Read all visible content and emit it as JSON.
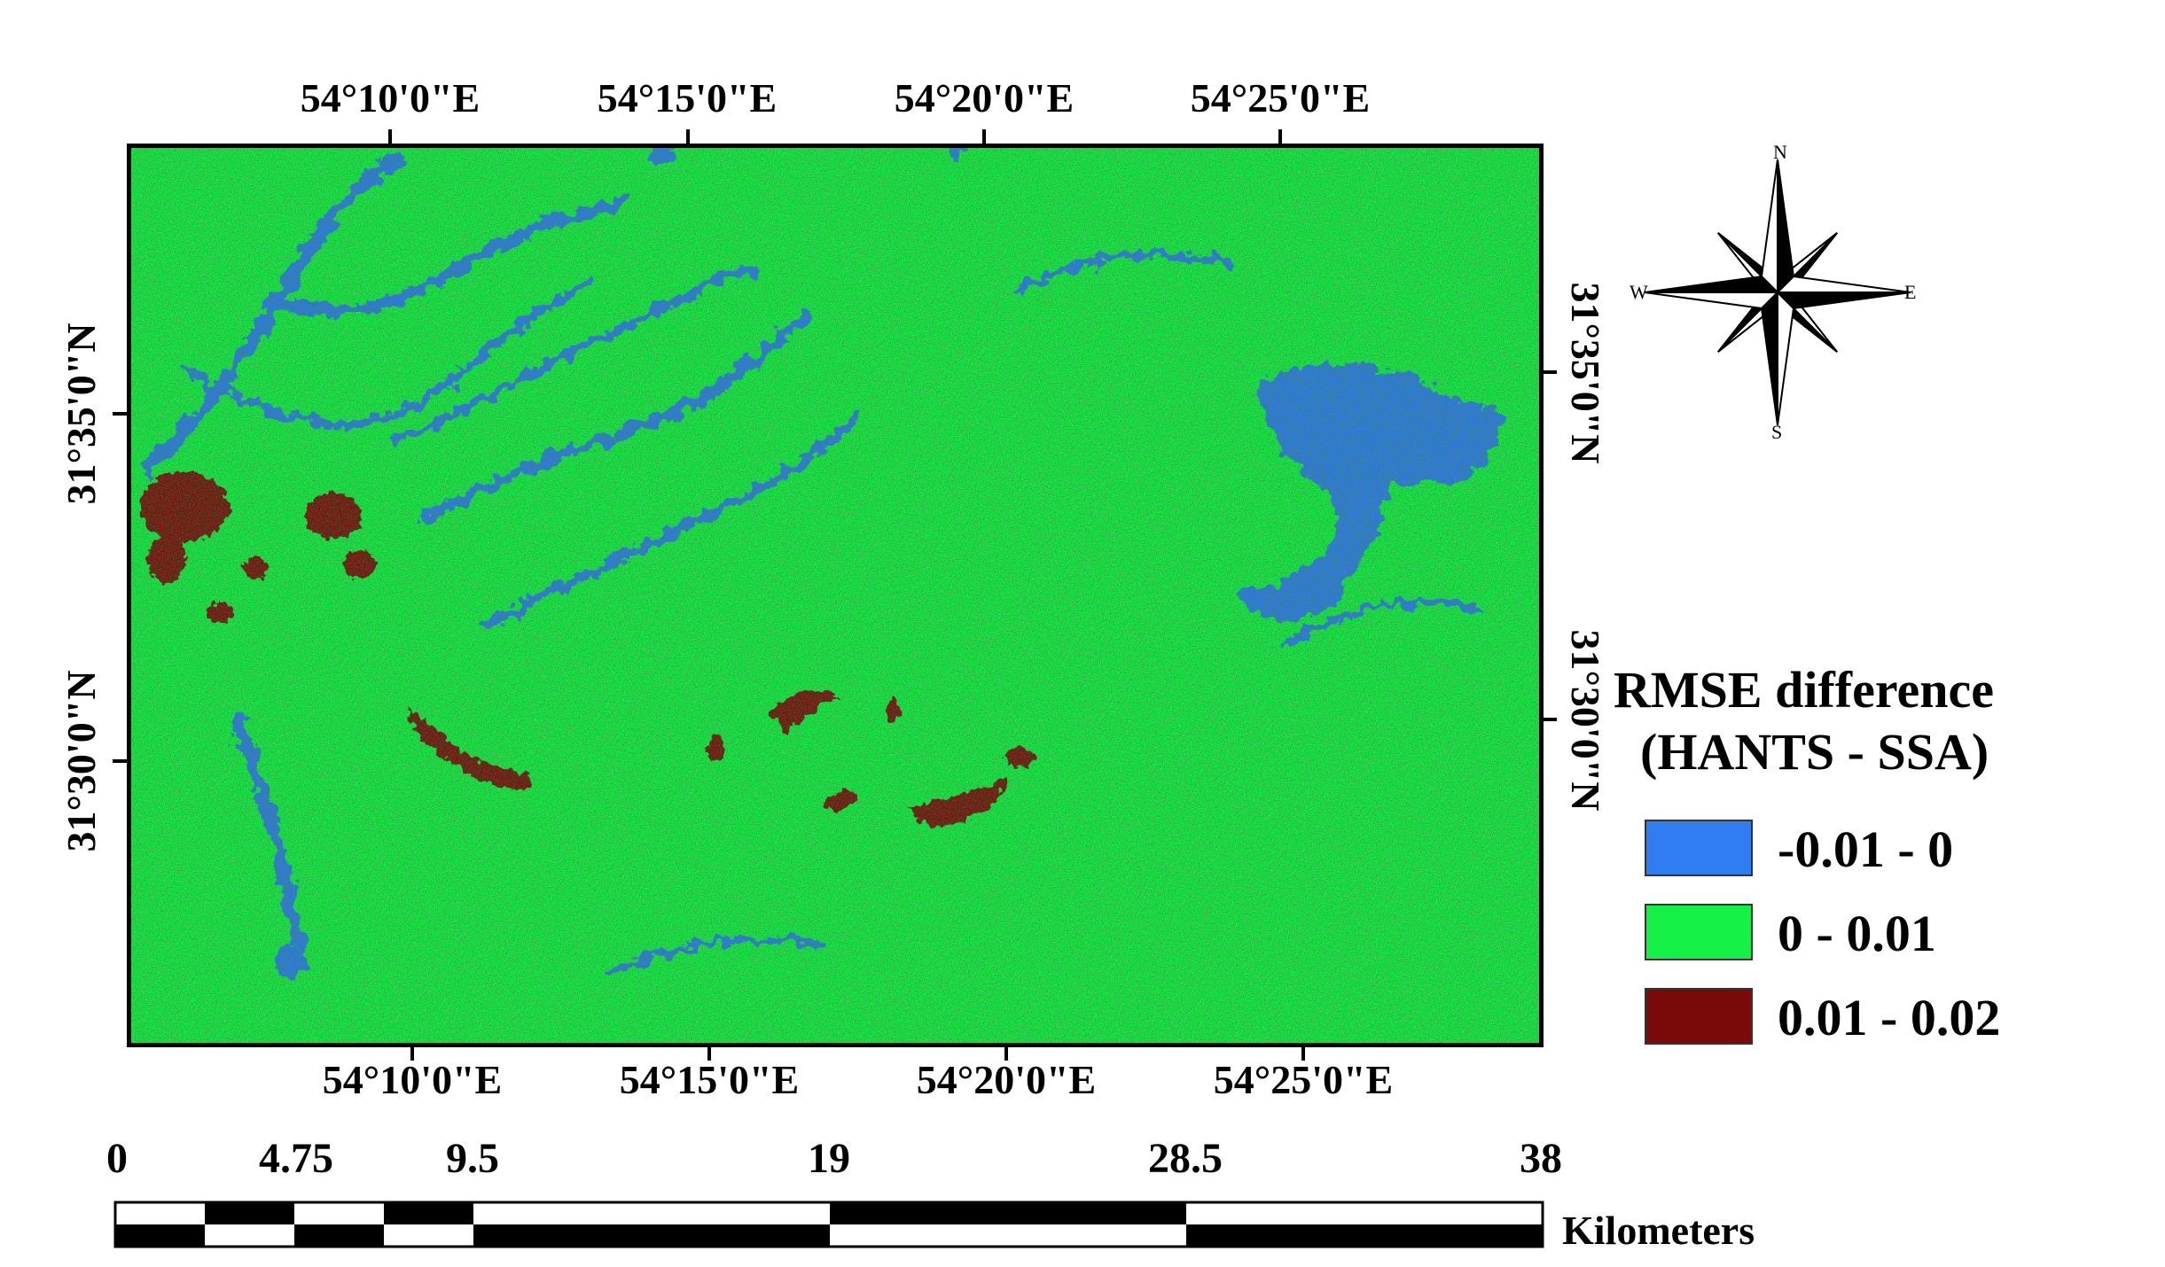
{
  "longitude_labels_top": [
    "54°10'0\"E",
    "54°15'0\"E",
    "54°20'0\"E",
    "54°25'0\"E"
  ],
  "longitude_labels_bottom": [
    "54°10'0\"E",
    "54°15'0\"E",
    "54°20'0\"E",
    "54°25'0\"E"
  ],
  "latitude_labels_left": [
    "31°35'0\"N",
    "31°30'0\"N"
  ],
  "latitude_labels_right": [
    "31°35'0\"N",
    "31°30'0\"N"
  ],
  "north_arrow": {
    "n": "N",
    "s": "S",
    "e": "E",
    "w": "W"
  },
  "legend": {
    "title_line1": "RMSE difference",
    "title_line2": "(HANTS - SSA)",
    "classes": [
      {
        "label": "-0.01 - 0",
        "color": "#2f7df0"
      },
      {
        "label": "0 - 0.01",
        "color": "#14f046"
      },
      {
        "label": "0.01 - 0.02",
        "color": "#7a0a0a"
      }
    ]
  },
  "scale_bar": {
    "ticks": [
      "0",
      "4.75",
      "9.5",
      "19",
      "28.5",
      "38"
    ],
    "unit": "Kilometers"
  },
  "colors": {
    "land": "#14f046",
    "negative": "#2f7df0",
    "positive": "#7a0a0a",
    "frame": "#000000"
  }
}
